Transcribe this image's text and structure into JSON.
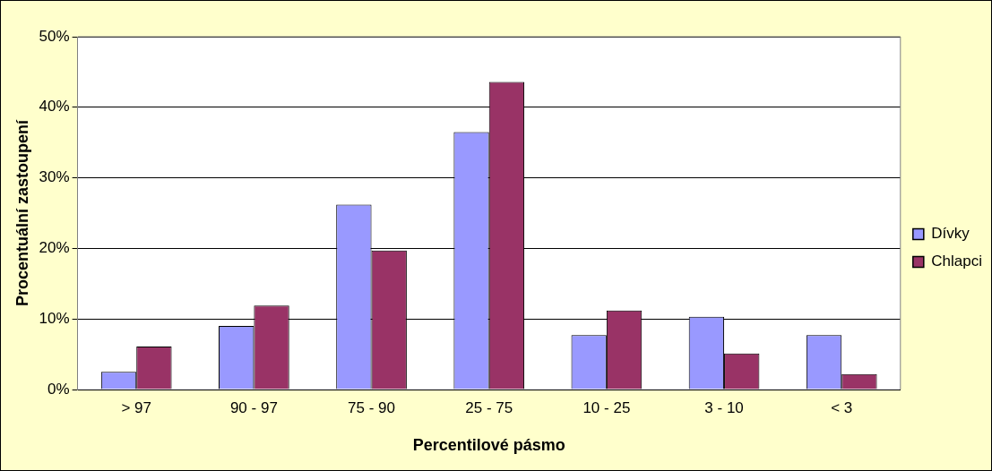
{
  "chart_data": {
    "type": "bar",
    "xlabel": "Percentilové pásmo",
    "ylabel": "Procentuální zastoupení",
    "categories": [
      "> 97",
      "90 - 97",
      "75 - 90",
      "25 - 75",
      "10 - 25",
      "3 - 10",
      "< 3"
    ],
    "series": [
      {
        "name": "Dívky",
        "color": "#9999ff",
        "values": [
          2.5,
          9.0,
          26.2,
          36.5,
          7.7,
          10.3,
          7.7
        ]
      },
      {
        "name": "Chlapci",
        "color": "#993366",
        "values": [
          6.1,
          11.9,
          19.7,
          43.6,
          11.2,
          5.1,
          2.2
        ]
      }
    ],
    "ylim": [
      0,
      50
    ],
    "yticks": [
      {
        "value": 0,
        "label": "0%"
      },
      {
        "value": 10,
        "label": "10%"
      },
      {
        "value": 20,
        "label": "20%"
      },
      {
        "value": 30,
        "label": "30%"
      },
      {
        "value": 40,
        "label": "40%"
      },
      {
        "value": 50,
        "label": "50%"
      }
    ],
    "grid": "y",
    "legend": "right"
  }
}
